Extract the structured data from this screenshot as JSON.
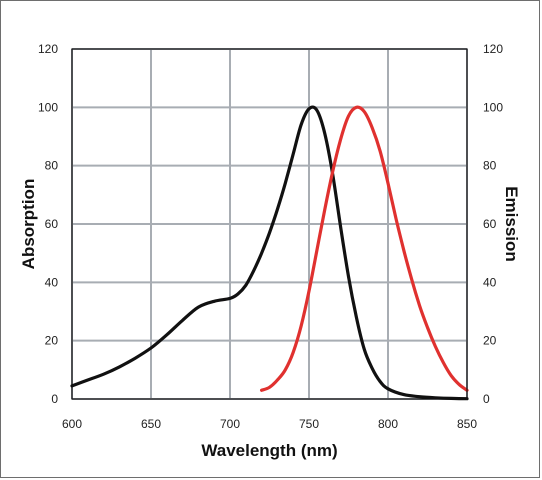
{
  "chart_data": {
    "type": "line",
    "title": "",
    "xlabel": "Wavelength (nm)",
    "ylabel_left": "Absorption",
    "ylabel_right": "Emission",
    "xlim": [
      600,
      850
    ],
    "ylim": [
      0,
      120
    ],
    "xticks": [
      "600",
      "650",
      "700",
      "750",
      "800",
      "850"
    ],
    "yticks": [
      "0",
      "20",
      "40",
      "60",
      "80",
      "100",
      "120"
    ],
    "grid": true,
    "legend": "none",
    "series": [
      {
        "color": "#111111",
        "axis": "left",
        "x": [
          600,
          610,
          620,
          630,
          640,
          650,
          660,
          670,
          680,
          690,
          700,
          705,
          710,
          715,
          720,
          725,
          730,
          735,
          740,
          745,
          750,
          755,
          760,
          765,
          770,
          775,
          780,
          785,
          790,
          795,
          800,
          810,
          820,
          830,
          840,
          850
        ],
        "y": [
          4.5,
          6.5,
          8.5,
          11,
          14,
          17.5,
          22,
          27,
          31.5,
          33.5,
          34.5,
          36,
          39,
          44,
          50,
          57,
          65,
          74,
          84,
          94,
          99.5,
          99,
          91,
          77,
          59,
          42,
          28,
          17,
          10.5,
          6,
          3.5,
          1.5,
          0.8,
          0.4,
          0.2,
          0.1
        ]
      },
      {
        "color": "#e0312f",
        "axis": "right",
        "x": [
          720,
          725,
          730,
          735,
          740,
          745,
          750,
          755,
          760,
          765,
          770,
          775,
          780,
          785,
          790,
          795,
          800,
          805,
          810,
          815,
          820,
          825,
          830,
          835,
          840,
          845,
          850
        ],
        "y": [
          3,
          4,
          6.5,
          10,
          16,
          25,
          37,
          51,
          65,
          78,
          89,
          97,
          100,
          98.5,
          93,
          85,
          74,
          62,
          51,
          41,
          32,
          24.5,
          18,
          12.5,
          8,
          5,
          3
        ]
      }
    ]
  }
}
